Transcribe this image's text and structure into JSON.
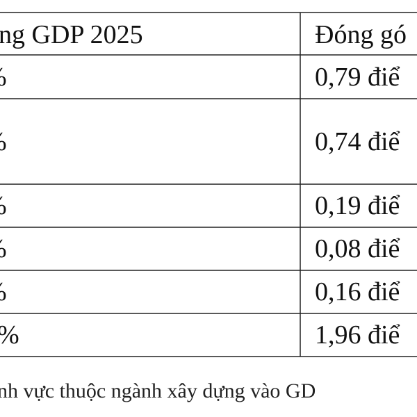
{
  "table": {
    "header": [
      "ng GDP 2025",
      "Đóng gó"
    ],
    "rows": [
      [
        "%",
        "0,79 điể"
      ],
      [
        "%",
        "0,74 điể"
      ],
      [
        "%",
        "0,19 điể"
      ],
      [
        "%",
        "0,08 điể"
      ],
      [
        "%",
        "0,16 điể"
      ],
      [
        "%",
        "1,96 điể"
      ]
    ]
  },
  "caption": "nh vực thuộc ngành xây dựng vào GD"
}
